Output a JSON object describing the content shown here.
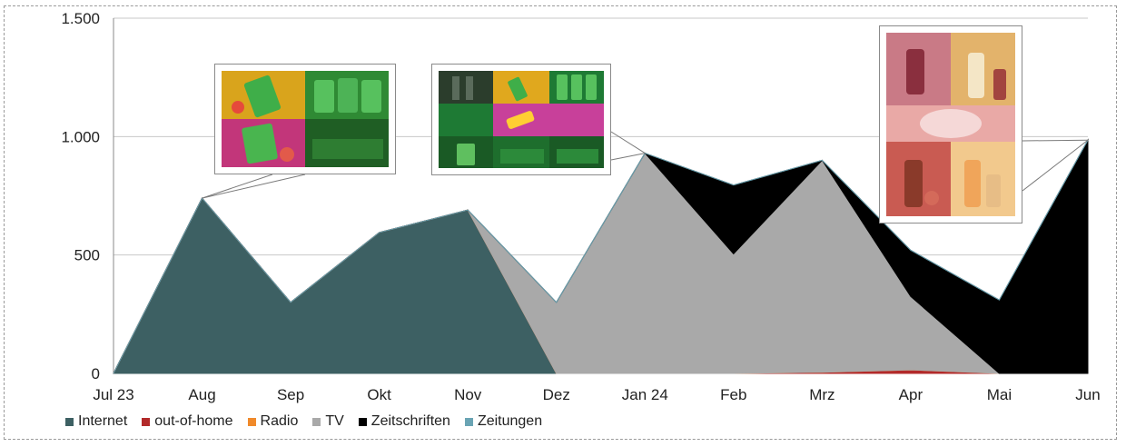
{
  "chart_data": {
    "type": "area",
    "stacked": true,
    "categories": [
      "Jul 23",
      "Aug",
      "Sep",
      "Okt",
      "Nov",
      "Dez",
      "Jan 24",
      "Feb",
      "Mrz",
      "Apr",
      "Mai",
      "Jun"
    ],
    "ylim": [
      0,
      1500
    ],
    "yticks": [
      {
        "value": 0,
        "label": "0"
      },
      {
        "value": 500,
        "label": "500"
      },
      {
        "value": 1000,
        "label": "1.000"
      },
      {
        "value": 1500,
        "label": "1.500"
      }
    ],
    "grid": true,
    "legend_position": "bottom-left",
    "series": [
      {
        "name": "Internet",
        "color": "#3d6063",
        "values": [
          0,
          740,
          300,
          595,
          690,
          0,
          0,
          0,
          0,
          0,
          0,
          0
        ]
      },
      {
        "name": "out-of-home",
        "color": "#b22a2a",
        "values": [
          0,
          0,
          0,
          0,
          0,
          0,
          0,
          0,
          5,
          15,
          0,
          0
        ]
      },
      {
        "name": "Radio",
        "color": "#f08a2b",
        "values": [
          0,
          0,
          0,
          0,
          0,
          0,
          0,
          0,
          0,
          0,
          0,
          0
        ]
      },
      {
        "name": "TV",
        "color": "#a9a9a9",
        "values": [
          0,
          0,
          0,
          0,
          0,
          300,
          930,
          505,
          895,
          310,
          0,
          0
        ]
      },
      {
        "name": "Zeitschriften",
        "color": "#000000",
        "values": [
          0,
          0,
          0,
          0,
          0,
          0,
          0,
          290,
          0,
          195,
          310,
          985
        ]
      },
      {
        "name": "Zeitungen",
        "color": "#6aa4b4",
        "values": [
          0,
          0,
          0,
          0,
          0,
          0,
          0,
          0,
          0,
          0,
          0,
          0
        ]
      }
    ]
  },
  "thumbnails": [
    {
      "name": "ad-thumbnail-aug",
      "points_to_category": "Aug",
      "palette": [
        "#d9a41c",
        "#2f8a34",
        "#c2367a",
        "#1f5e24"
      ]
    },
    {
      "name": "ad-thumbnail-jan",
      "points_to_category": "Jan 24",
      "palette": [
        "#2b3d2c",
        "#e0a81e",
        "#1e7a34",
        "#c8409a",
        "#1a5a25"
      ]
    },
    {
      "name": "ad-thumbnail-jun",
      "points_to_category": "Jun",
      "palette": [
        "#c97a86",
        "#e3b36b",
        "#e9a9a6",
        "#f2c98d"
      ]
    }
  ]
}
